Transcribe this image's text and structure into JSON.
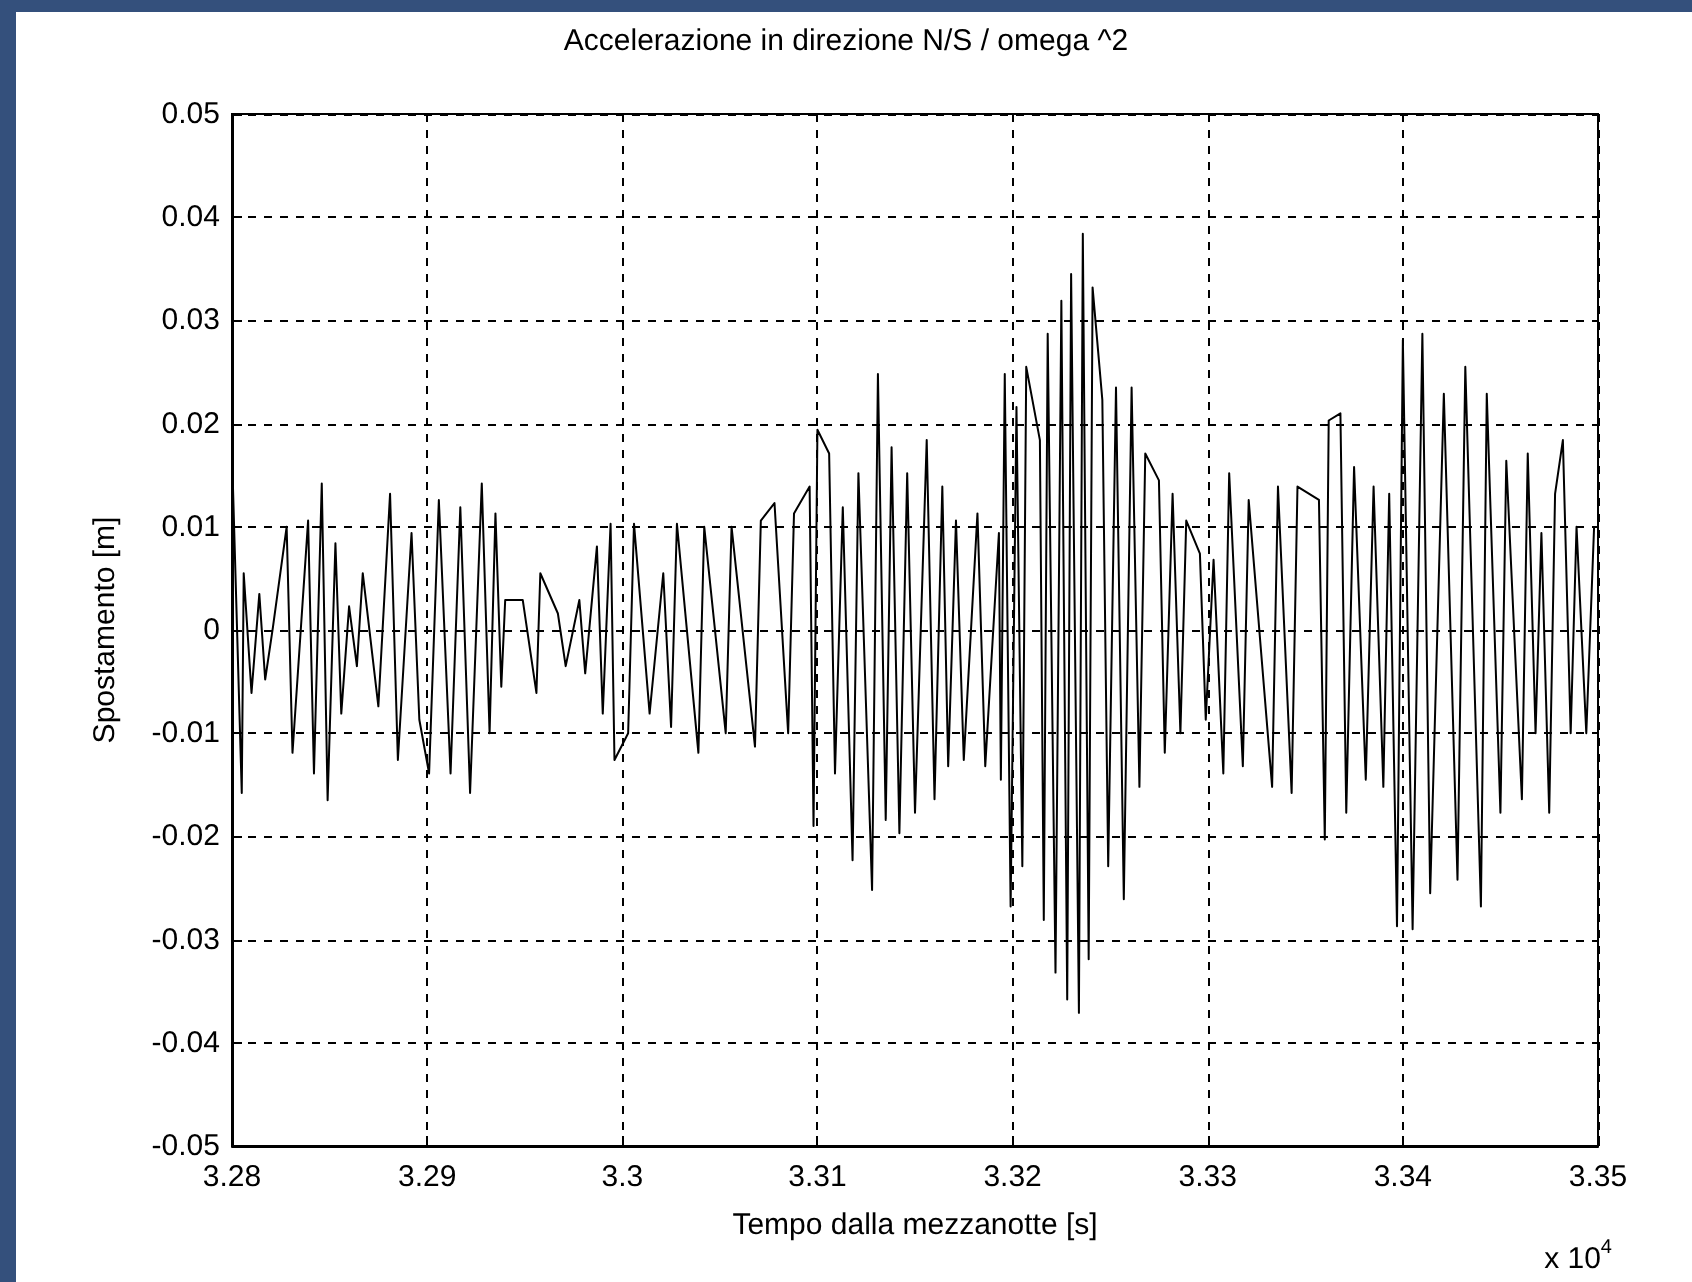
{
  "chart_data": {
    "type": "line",
    "title": "Accelerazione in direzione N/S / omega ^2",
    "xlabel": "Tempo dalla mezzanotte [s]",
    "ylabel": "Spostamento [m]",
    "annotations": [
      "x 10$^{4}$"
    ],
    "xlim": [
      3.28,
      3.35
    ],
    "xticks": [
      3.28,
      3.29,
      3.3,
      3.31,
      3.32,
      3.33,
      3.34,
      3.35
    ],
    "ylim": [
      -0.05,
      0.05
    ],
    "yticks": [
      -0.05,
      -0.04,
      -0.03,
      -0.02,
      -0.01,
      0,
      0.01,
      0.02,
      0.03,
      0.04,
      0.05
    ],
    "grid": true,
    "line_style": "solid",
    "marker": "none",
    "x": [
      3.28,
      3.2805,
      3.2806,
      3.281,
      3.2814,
      3.2817,
      3.2821,
      3.2828,
      3.2831,
      3.2839,
      3.2842,
      3.2846,
      3.2849,
      3.2853,
      3.2856,
      3.286,
      3.2864,
      3.2867,
      3.2875,
      3.2881,
      3.2885,
      3.2892,
      3.2896,
      3.2901,
      3.2906,
      3.2912,
      3.2917,
      3.2922,
      3.2928,
      3.2932,
      3.2935,
      3.2938,
      3.294,
      3.2949,
      3.2956,
      3.2958,
      3.2967,
      3.2971,
      3.2978,
      3.2981,
      3.2987,
      3.299,
      3.2994,
      3.2996,
      3.3003,
      3.3006,
      3.3014,
      3.3021,
      3.3025,
      3.3028,
      3.3039,
      3.3042,
      3.3053,
      3.3056,
      3.3068,
      3.3071,
      3.3078,
      3.3085,
      3.3088,
      3.3096,
      3.3098,
      3.31,
      3.3106,
      3.3109,
      3.3113,
      3.3118,
      3.3121,
      3.3128,
      3.3131,
      3.3135,
      3.3138,
      3.3142,
      3.3146,
      3.315,
      3.3156,
      3.316,
      3.3164,
      3.3167,
      3.3171,
      3.3175,
      3.3182,
      3.3186,
      3.3193,
      3.3194,
      3.3196,
      3.3199,
      3.3202,
      3.3205,
      3.3207,
      3.3214,
      3.3216,
      3.3218,
      3.3222,
      3.3225,
      3.3228,
      3.323,
      3.3234,
      3.3236,
      3.3239,
      3.3241,
      3.3246,
      3.3249,
      3.3253,
      3.3257,
      3.3261,
      3.3265,
      3.3268,
      3.3275,
      3.3278,
      3.3282,
      3.3286,
      3.3289,
      3.3296,
      3.3299,
      3.3303,
      3.3308,
      3.3311,
      3.3318,
      3.3321,
      3.3333,
      3.3336,
      3.3343,
      3.3346,
      3.3357,
      3.336,
      3.3362,
      3.3368,
      3.3371,
      3.3375,
      3.3381,
      3.3385,
      3.339,
      3.3393,
      3.3397,
      3.34,
      3.3405,
      3.341,
      3.3414,
      3.3421,
      3.3428,
      3.3432,
      3.344,
      3.3443,
      3.345,
      3.3453,
      3.3461,
      3.3464,
      3.3468,
      3.3471,
      3.3475,
      3.3478,
      3.3482,
      3.3486,
      3.3489,
      3.3494,
      3.3498
    ],
    "series": [
      {
        "color": "#000000",
        "values": [
          0.0171,
          -0.0158,
          0.0055,
          -0.0061,
          0.0035,
          -0.0048,
          0.0003,
          0.01,
          -0.0119,
          0.0106,
          -0.0139,
          0.0142,
          -0.0165,
          0.0084,
          -0.0081,
          0.0023,
          -0.0035,
          0.0055,
          -0.0074,
          0.0132,
          -0.0126,
          0.0094,
          -0.0087,
          -0.0139,
          0.0126,
          -0.0139,
          0.0119,
          -0.0158,
          0.0142,
          -0.01,
          0.0113,
          -0.0055,
          0.0029,
          0.0029,
          -0.0061,
          0.0055,
          0.0016,
          -0.0035,
          0.0029,
          -0.0042,
          0.0081,
          -0.0081,
          0.0103,
          -0.0126,
          -0.01,
          0.0103,
          -0.0081,
          0.0055,
          -0.0094,
          0.0103,
          -0.0119,
          0.01,
          -0.01,
          0.01,
          -0.0113,
          0.0106,
          0.0123,
          -0.01,
          0.0113,
          0.0139,
          -0.019,
          0.0194,
          0.0171,
          -0.0139,
          0.0119,
          -0.0223,
          0.0152,
          -0.0252,
          0.0248,
          -0.0184,
          0.0177,
          -0.0197,
          0.0152,
          -0.0177,
          0.0184,
          -0.0164,
          0.0139,
          -0.0132,
          0.0106,
          -0.0126,
          0.0113,
          -0.0132,
          0.0094,
          -0.0145,
          0.0248,
          -0.0268,
          0.0216,
          -0.0229,
          0.0255,
          0.0184,
          -0.0281,
          0.0287,
          -0.0332,
          0.0319,
          -0.0358,
          0.0345,
          -0.0371,
          0.0384,
          -0.0319,
          0.0332,
          0.0223,
          -0.0229,
          0.0235,
          -0.0261,
          0.0235,
          -0.0152,
          0.0171,
          0.0145,
          -0.0119,
          0.0132,
          -0.01,
          0.0106,
          0.0074,
          -0.0087,
          0.0068,
          -0.0139,
          0.0152,
          -0.0132,
          0.0126,
          -0.0152,
          0.0139,
          -0.0158,
          0.0139,
          0.0126,
          -0.0203,
          0.0203,
          0.021,
          -0.0177,
          0.0158,
          -0.0145,
          0.0139,
          -0.0152,
          0.0132,
          -0.0287,
          0.0281,
          -0.029,
          0.0287,
          -0.0255,
          0.0229,
          -0.0242,
          0.0255,
          -0.0268,
          0.0229,
          -0.0177,
          0.0164,
          -0.0164,
          0.0171,
          -0.01,
          0.0094,
          -0.0177,
          0.0132,
          0.0184,
          -0.01,
          0.01,
          -0.01,
          0.01
        ]
      }
    ]
  }
}
